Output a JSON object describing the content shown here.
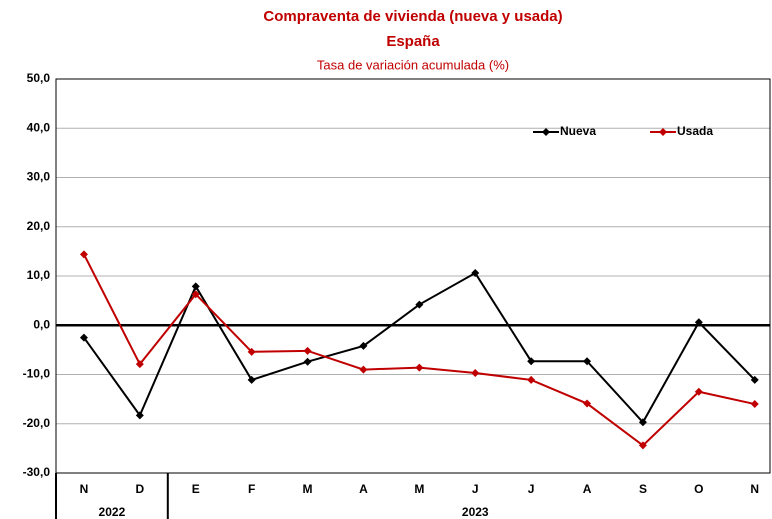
{
  "chart_data": {
    "type": "line",
    "title": "Compraventa de vivienda (nueva y usada)",
    "title_region": "España",
    "subtitle": "Tasa de variación acumulada (%)",
    "groups": [
      {
        "name": "2022",
        "categories": [
          "N",
          "D"
        ]
      },
      {
        "name": "2023",
        "categories": [
          "E",
          "F",
          "M",
          "A",
          "M",
          "J",
          "J",
          "A",
          "S",
          "O",
          "N"
        ]
      }
    ],
    "series": [
      {
        "name": "Nueva",
        "color": "#000000",
        "values": [
          -2.5,
          -18.3,
          7.9,
          -11.1,
          -7.4,
          -4.2,
          4.2,
          10.6,
          -7.3,
          -7.3,
          -19.7,
          0.6,
          -11.1
        ]
      },
      {
        "name": "Usada",
        "color": "#c00000",
        "values": [
          14.4,
          -7.9,
          6.3,
          -5.4,
          -5.2,
          -9.0,
          -8.6,
          -9.7,
          -11.1,
          -15.9,
          -24.4,
          -13.5,
          -16.0
        ]
      }
    ],
    "ylim": [
      -30,
      50
    ],
    "yticks": [
      {
        "value": -30,
        "label": "-30,0"
      },
      {
        "value": -20,
        "label": "-20,0"
      },
      {
        "value": -10,
        "label": "-10,0"
      },
      {
        "value": 0,
        "label": "0,0"
      },
      {
        "value": 10,
        "label": "10,0"
      },
      {
        "value": 20,
        "label": "20,0"
      },
      {
        "value": 30,
        "label": "30,0"
      },
      {
        "value": 40,
        "label": "40,0"
      },
      {
        "value": 50,
        "label": "50,0"
      }
    ],
    "grid": true
  }
}
